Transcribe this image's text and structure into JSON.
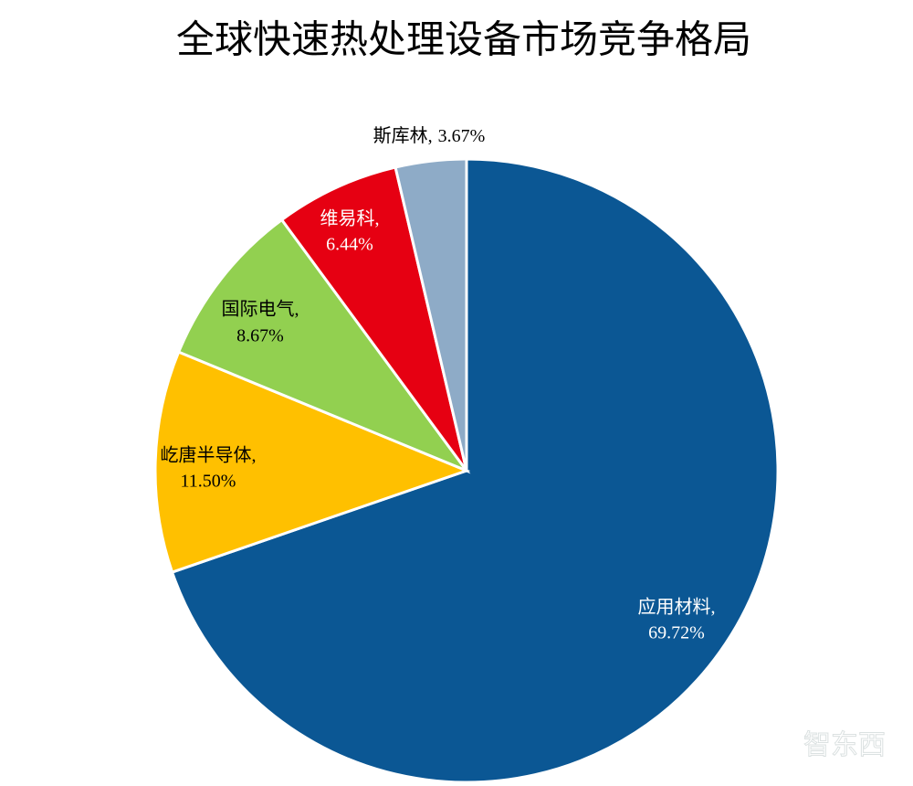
{
  "chart_data": {
    "type": "pie",
    "title": "全球快速热处理设备市场竞争格局",
    "categories": [
      "应用材料,",
      "屹唐半导体,",
      "国际电气,",
      "维易科,",
      "斯库林,"
    ],
    "values": [
      69.72,
      11.5,
      8.67,
      6.44,
      3.67
    ],
    "value_labels": [
      "69.72%",
      "11.50%",
      "8.67%",
      "6.44%",
      "3.67%"
    ],
    "colors": [
      "#0b5794",
      "#ffc000",
      "#92d050",
      "#e60012",
      "#8eabc7"
    ],
    "watermark": "智东西"
  }
}
